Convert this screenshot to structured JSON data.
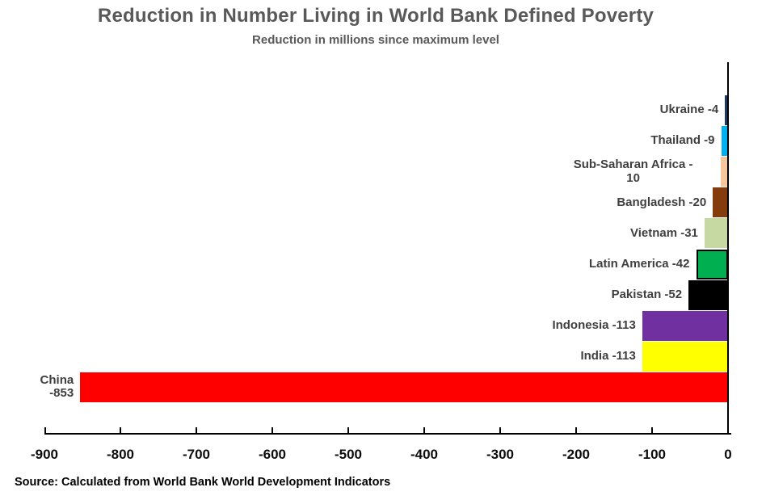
{
  "chart_data": {
    "type": "bar",
    "orientation": "horizontal",
    "title": "Reduction in Number Living in World Bank Defined Poverty",
    "subtitle": "Reduction in millions since maximum level",
    "source": "Source: Calculated from World Bank World Development Indicators",
    "xlabel": "",
    "ylabel": "",
    "xlim": [
      -900,
      0
    ],
    "grid": false,
    "legend": false,
    "x_ticks": [
      "-900",
      "-800",
      "-700",
      "-600",
      "-500",
      "-400",
      "-300",
      "-200",
      "-100",
      "0"
    ],
    "bars": [
      {
        "country": "Ukraine",
        "label": "Ukraine -4",
        "value": -4,
        "color": "#1F3864"
      },
      {
        "country": "Thailand",
        "label": "Thailand -9",
        "value": -9,
        "color": "#00B0F0"
      },
      {
        "country": "Sub-Saharan Africa",
        "label": "Sub-Saharan Africa -\n10",
        "value": -10,
        "color": "#F8C69C"
      },
      {
        "country": "Bangladesh",
        "label": "Bangladesh -20",
        "value": -20,
        "color": "#843C0C"
      },
      {
        "country": "Vietnam",
        "label": "Vietnam -31",
        "value": -31,
        "color": "#C6D9A2"
      },
      {
        "country": "Latin America",
        "label": "Latin America -42",
        "value": -42,
        "color": "#00B050",
        "border_color": "#000000"
      },
      {
        "country": "Pakistan",
        "label": "Pakistan -52",
        "value": -52,
        "color": "#000000"
      },
      {
        "country": "Indonesia",
        "label": "Indonesia -113",
        "value": -113,
        "color": "#7030A0"
      },
      {
        "country": "India",
        "label": "India -113",
        "value": -113,
        "color": "#FFFF00"
      },
      {
        "country": "China",
        "label": "China -853",
        "value": -853,
        "color": "#FF0000"
      }
    ]
  }
}
